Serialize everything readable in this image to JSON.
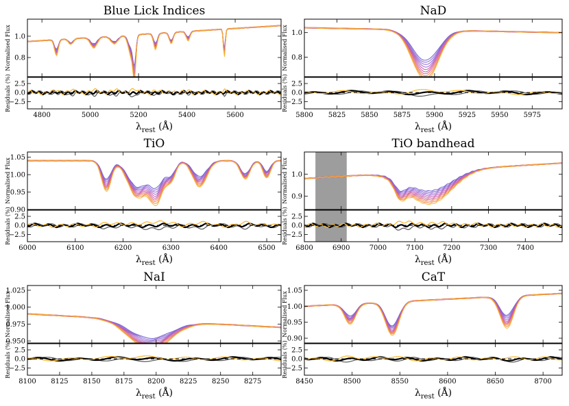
{
  "figure": {
    "ylabel_top": "Normalised Flux",
    "ylabel_bottom": "Residuals (%)",
    "xlabel_main": "λ",
    "xlabel_sub": "rest",
    "xlabel_unit": " (Å)",
    "line_colors": [
      "#6a5acd",
      "#8a63d2",
      "#a45fc9",
      "#c45aa8",
      "#e0607f",
      "#f08a4b",
      "#f7b52c"
    ],
    "residual_color": "#000000"
  },
  "chart_data": [
    {
      "type": "line",
      "title": "Blue Lick Indices",
      "xlim": [
        4740,
        5790
      ],
      "xticks": [
        4800,
        5000,
        5200,
        5400,
        5600
      ],
      "ylim_top": [
        0.62,
        1.16
      ],
      "yticks_top": [
        0.8,
        1.0
      ],
      "ylim_bottom": [
        -4.5,
        4.2
      ],
      "yticks_bottom": [
        -2.5,
        0.0,
        2.5
      ],
      "features": [
        {
          "center": 4860,
          "depth": 0.12,
          "width": 8
        },
        {
          "center": 4920,
          "depth": 0.05,
          "width": 10
        },
        {
          "center": 5015,
          "depth": 0.08,
          "width": 14
        },
        {
          "center": 5100,
          "depth": 0.07,
          "width": 15
        },
        {
          "center": 5170,
          "depth": 0.16,
          "width": 12
        },
        {
          "center": 5183,
          "depth": 0.3,
          "width": 6
        },
        {
          "center": 5270,
          "depth": 0.12,
          "width": 8
        },
        {
          "center": 5335,
          "depth": 0.1,
          "width": 8
        },
        {
          "center": 5405,
          "depth": 0.07,
          "width": 8
        },
        {
          "center": 5555,
          "depth": 0.25,
          "width": 4
        }
      ],
      "continuum_start": 0.95,
      "continuum_end": 1.1
    },
    {
      "type": "line",
      "title": "NaD",
      "xlim": [
        5800,
        5998
      ],
      "xticks": [
        5800,
        5825,
        5850,
        5875,
        5900,
        5925,
        5950,
        5975
      ],
      "ylim_top": [
        0.64,
        1.11
      ],
      "yticks_top": [
        0.8,
        1.0
      ],
      "ylim_bottom": [
        -4.5,
        4.2
      ],
      "yticks_bottom": [
        -2.5,
        0.0,
        2.5
      ],
      "features": [
        {
          "center": 5893,
          "depth": 0.33,
          "width": 10
        }
      ],
      "continuum_start": 1.04,
      "continuum_end": 1.0
    },
    {
      "type": "line",
      "title": "TiO",
      "xlim": [
        6000,
        6530
      ],
      "xticks": [
        6000,
        6100,
        6200,
        6300,
        6400,
        6500
      ],
      "ylim_top": [
        0.9,
        1.065
      ],
      "yticks_top": [
        0.9,
        0.95,
        1.0,
        1.05
      ],
      "ylim_bottom": [
        -4.5,
        4.2
      ],
      "yticks_bottom": [
        -2.5,
        0.0,
        2.5
      ],
      "features": [
        {
          "center": 6165,
          "depth": 0.07,
          "width": 10
        },
        {
          "center": 6230,
          "depth": 0.1,
          "width": 20
        },
        {
          "center": 6270,
          "depth": 0.09,
          "width": 14
        },
        {
          "center": 6300,
          "depth": 0.05,
          "width": 10
        },
        {
          "center": 6360,
          "depth": 0.06,
          "width": 15
        },
        {
          "center": 6455,
          "depth": 0.05,
          "width": 10
        },
        {
          "center": 6500,
          "depth": 0.04,
          "width": 8
        }
      ],
      "continuum_start": 1.04,
      "continuum_end": 1.04
    },
    {
      "type": "line",
      "title": "TiO bandhead",
      "xlim": [
        6800,
        7500
      ],
      "xticks": [
        6800,
        6900,
        7000,
        7100,
        7200,
        7300,
        7400
      ],
      "ylim_top": [
        0.84,
        1.1
      ],
      "yticks_top": [
        0.9,
        1.0
      ],
      "ylim_bottom": [
        -4.5,
        4.2
      ],
      "yticks_bottom": [
        -2.5,
        0.0,
        2.5
      ],
      "shaded_region": [
        6830,
        6915
      ],
      "features": [
        {
          "center": 7140,
          "depth": 0.12,
          "width": 60
        },
        {
          "center": 7060,
          "depth": 0.06,
          "width": 15
        }
      ],
      "continuum_start": 0.98,
      "continuum_end": 1.05
    },
    {
      "type": "line",
      "title": "NaI",
      "xlim": [
        8100,
        8297
      ],
      "xticks": [
        8100,
        8125,
        8150,
        8175,
        8200,
        8225,
        8250,
        8275
      ],
      "ylim_top": [
        0.947,
        1.032
      ],
      "yticks_top": [
        0.95,
        0.975,
        1.0,
        1.025
      ],
      "ylim_bottom": [
        -4.5,
        4.2
      ],
      "yticks_bottom": [
        -2.5,
        0.0,
        2.5
      ],
      "features": [
        {
          "center": 8195,
          "depth": 0.035,
          "width": 16
        }
      ],
      "continuum_start": 0.99,
      "continuum_end": 0.97
    },
    {
      "type": "line",
      "title": "CaT",
      "xlim": [
        8450,
        8720
      ],
      "xticks": [
        8450,
        8500,
        8550,
        8600,
        8650,
        8700
      ],
      "ylim_top": [
        0.885,
        1.065
      ],
      "yticks_top": [
        0.9,
        0.95,
        1.0,
        1.05
      ],
      "ylim_bottom": [
        -4.5,
        4.2
      ],
      "yticks_bottom": [
        -2.5,
        0.0,
        2.5
      ],
      "features": [
        {
          "center": 8498,
          "depth": 0.05,
          "width": 6
        },
        {
          "center": 8542,
          "depth": 0.1,
          "width": 7
        },
        {
          "center": 8662,
          "depth": 0.08,
          "width": 7
        }
      ],
      "continuum_start": 1.0,
      "continuum_end": 1.04
    }
  ]
}
